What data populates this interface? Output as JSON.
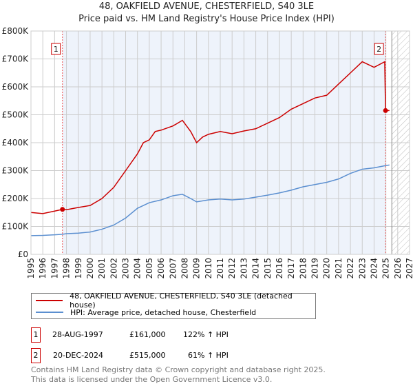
{
  "chart_data": {
    "type": "line",
    "title": "48, OAKFIELD AVENUE, CHESTERFIELD, S40 3LE",
    "subtitle": "Price paid vs. HM Land Registry's House Price Index (HPI)",
    "xlim": [
      1995,
      2027
    ],
    "ylim": [
      0,
      800000
    ],
    "yticks": [
      {
        "v": 0,
        "label": "£0"
      },
      {
        "v": 100000,
        "label": "£100K"
      },
      {
        "v": 200000,
        "label": "£200K"
      },
      {
        "v": 300000,
        "label": "£300K"
      },
      {
        "v": 400000,
        "label": "£400K"
      },
      {
        "v": 500000,
        "label": "£500K"
      },
      {
        "v": 600000,
        "label": "£600K"
      },
      {
        "v": 700000,
        "label": "£700K"
      },
      {
        "v": 800000,
        "label": "£800K"
      }
    ],
    "xticks": [
      "1995",
      "1996",
      "1997",
      "1998",
      "1999",
      "2000",
      "2001",
      "2002",
      "2003",
      "2004",
      "2005",
      "2006",
      "2007",
      "2008",
      "2009",
      "2010",
      "2011",
      "2012",
      "2013",
      "2014",
      "2015",
      "2016",
      "2017",
      "2018",
      "2019",
      "2020",
      "2021",
      "2022",
      "2023",
      "2024",
      "2025",
      "2026",
      "2027"
    ],
    "series": [
      {
        "name": "48, OAKFIELD AVENUE, CHESTERFIELD, S40 3LE (detached house)",
        "color": "#cc0000",
        "x": [
          1995,
          1996,
          1997,
          1997.66,
          1998,
          1999,
          2000,
          2001,
          2002,
          2003,
          2004,
          2004.5,
          2005,
          2005.5,
          2006,
          2007,
          2007.8,
          2008.5,
          2009,
          2009.5,
          2010,
          2011,
          2012,
          2013,
          2014,
          2015,
          2016,
          2017,
          2018,
          2019,
          2020,
          2021,
          2022,
          2023,
          2023.5,
          2024,
          2024.9,
          2024.97,
          2025.3
        ],
        "y": [
          150000,
          146000,
          155000,
          161000,
          160000,
          168000,
          175000,
          200000,
          240000,
          300000,
          360000,
          400000,
          410000,
          440000,
          445000,
          460000,
          480000,
          440000,
          400000,
          420000,
          430000,
          440000,
          432000,
          442000,
          450000,
          470000,
          490000,
          520000,
          540000,
          560000,
          570000,
          610000,
          650000,
          690000,
          680000,
          670000,
          690000,
          515000,
          515000
        ]
      },
      {
        "name": "HPI: Average price, detached house, Chesterfield",
        "color": "#5b8fd0",
        "x": [
          1995,
          1996,
          1997,
          1997.66,
          1998,
          1999,
          2000,
          2001,
          2002,
          2003,
          2004,
          2005,
          2006,
          2007,
          2007.8,
          2008.5,
          2009,
          2010,
          2011,
          2012,
          2013,
          2014,
          2015,
          2016,
          2017,
          2018,
          2019,
          2020,
          2021,
          2022,
          2023,
          2024,
          2024.97,
          2025.3
        ],
        "y": [
          67000,
          68000,
          70000,
          72000,
          74000,
          76000,
          80000,
          90000,
          105000,
          130000,
          165000,
          185000,
          195000,
          210000,
          215000,
          200000,
          188000,
          195000,
          198000,
          195000,
          198000,
          205000,
          212000,
          220000,
          230000,
          242000,
          250000,
          258000,
          270000,
          290000,
          305000,
          310000,
          318000,
          320000
        ]
      }
    ],
    "sales": [
      {
        "id": "1",
        "x": 1997.66,
        "y": 161000,
        "date": "28-AUG-1997",
        "price": "£161,000",
        "hpi": "122% ↑ HPI"
      },
      {
        "id": "2",
        "x": 2024.97,
        "y": 515000,
        "date": "20-DEC-2024",
        "price": "£515,000",
        "hpi": "61% ↑ HPI"
      }
    ],
    "forecast_from": 2025.5,
    "grid": true,
    "legend": "bottom"
  },
  "footer": [
    "Contains HM Land Registry data © Crown copyright and database right 2025.",
    "This data is licensed under the Open Government Licence v3.0."
  ]
}
